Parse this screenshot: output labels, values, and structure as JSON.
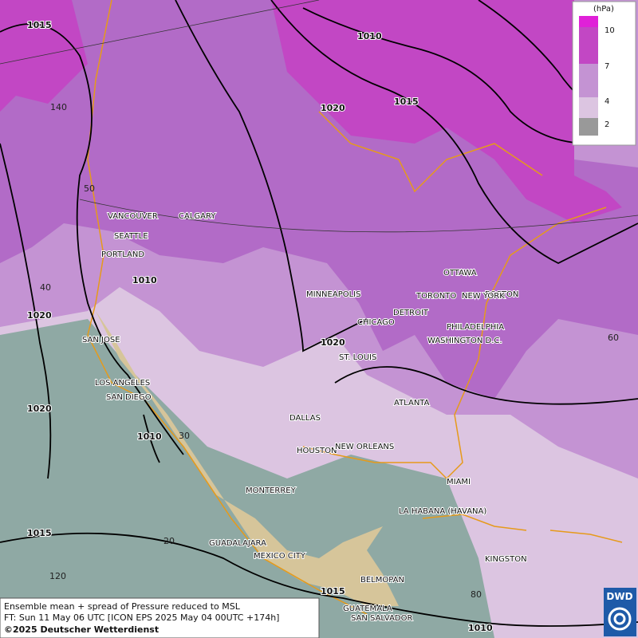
{
  "map": {
    "cities": [
      "VANCOUVER",
      "CALGARY",
      "SEATTLE",
      "PORTLAND",
      "MINNEAPOLIS",
      "TORONTO",
      "OTTAWA",
      "BOSTON",
      "DETROIT",
      "NEW YORK",
      "PHILADELPHIA",
      "CHICAGO",
      "WASHINGTON D.C.",
      "ST. LOUIS",
      "SAN JOSE",
      "LOS ANGELES",
      "SAN DIEGO",
      "DALLAS",
      "ATLANTA",
      "HOUSTON",
      "NEW ORLEANS",
      "MIAMI",
      "MONTERREY",
      "LA HABANA (HAVANA)",
      "GUADALAJARA",
      "MEXICO CITY",
      "KINGSTON",
      "BELMOPAN",
      "GUATEMALA",
      "SAN SALVADOR"
    ],
    "isobar_labels": [
      "1015",
      "1010",
      "1020",
      "1015",
      "1010",
      "1020",
      "1020",
      "1020",
      "1010",
      "1015",
      "1015",
      "1010"
    ],
    "grid_labels": [
      "140",
      "50",
      "40",
      "30",
      "20",
      "120",
      "80",
      "60"
    ]
  },
  "legend": {
    "unit": "(hPa)",
    "levels": [
      "10",
      "7",
      "4",
      "2"
    ]
  },
  "footer": {
    "lines": [
      "Ensemble mean + spread of Pressure reduced to MSL",
      "FT: Sun 11 May 06 UTC [ICON EPS 2025 May 04 00UTC +174h]",
      "©2025 Deutscher Wetterdienst"
    ],
    "logo": "DWD"
  }
}
